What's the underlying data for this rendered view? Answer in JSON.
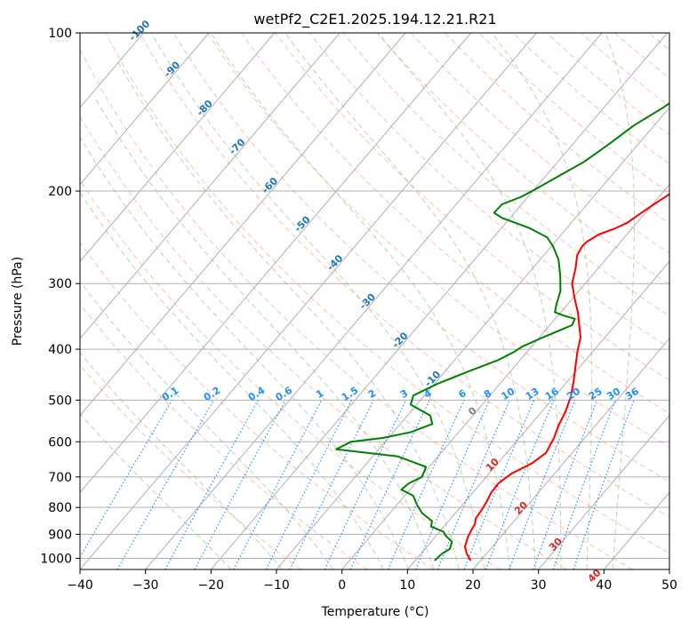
{
  "chart_data": {
    "type": "line",
    "title": "wetPf2_C2E1.2025.194.12.21.R21",
    "xlabel": "Temperature (°C)",
    "ylabel": "Pressure (hPa)",
    "xlim": [
      -40,
      50
    ],
    "ylim": [
      1050,
      100
    ],
    "y_scale": "log",
    "grid": true,
    "x_ticks": [
      -40,
      -30,
      -20,
      -10,
      0,
      10,
      20,
      30,
      40,
      50
    ],
    "y_ticks": [
      100,
      200,
      300,
      400,
      500,
      600,
      700,
      800,
      900,
      1000
    ],
    "series": [
      {
        "color": "#ff0000",
        "points": [
          [
            18.5,
            1010
          ],
          [
            17.0,
            980
          ],
          [
            15.8,
            950
          ],
          [
            15.0,
            910
          ],
          [
            14.6,
            880
          ],
          [
            14.4,
            860
          ],
          [
            13.8,
            840
          ],
          [
            13.6,
            810
          ],
          [
            13.3,
            780
          ],
          [
            12.8,
            750
          ],
          [
            12.7,
            720
          ],
          [
            13.4,
            690
          ],
          [
            15.2,
            660
          ],
          [
            16.0,
            630
          ],
          [
            15.3,
            590
          ],
          [
            14.4,
            560
          ],
          [
            13.6,
            525
          ],
          [
            12.4,
            490
          ],
          [
            10.9,
            460
          ],
          [
            9.2,
            430
          ],
          [
            7.7,
            405
          ],
          [
            6.3,
            380
          ],
          [
            4.5,
            360
          ],
          [
            2.6,
            340
          ],
          [
            0.3,
            320
          ],
          [
            -2.0,
            300
          ],
          [
            -3.5,
            280
          ],
          [
            -4.9,
            265
          ],
          [
            -5.3,
            255
          ],
          [
            -5.2,
            250
          ],
          [
            -4.3,
            242
          ],
          [
            -2.7,
            236
          ],
          [
            -1.5,
            230
          ],
          [
            -0.8,
            222
          ],
          [
            0.2,
            212
          ],
          [
            1.8,
            198
          ],
          [
            3.8,
            182
          ],
          [
            6.0,
            165
          ],
          [
            7.2,
            152
          ],
          [
            7.7,
            140
          ],
          [
            8.3,
            130
          ],
          [
            9.5,
            122
          ],
          [
            11.1,
            115
          ],
          [
            12.6,
            108
          ],
          [
            13.8,
            100
          ]
        ]
      },
      {
        "color": "#008000",
        "points": [
          [
            13.0,
            1010
          ],
          [
            13.2,
            980
          ],
          [
            13.8,
            960
          ],
          [
            13.2,
            930
          ],
          [
            11.4,
            905
          ],
          [
            10.6,
            890
          ],
          [
            8.0,
            870
          ],
          [
            7.5,
            850
          ],
          [
            4.9,
            820
          ],
          [
            3.0,
            790
          ],
          [
            1.3,
            760
          ],
          [
            -1.3,
            740
          ],
          [
            -1.0,
            720
          ],
          [
            0.2,
            700
          ],
          [
            -0.5,
            670
          ],
          [
            -6.1,
            640
          ],
          [
            -16.5,
            620
          ],
          [
            -15.2,
            600
          ],
          [
            -10.8,
            590
          ],
          [
            -7.3,
            575
          ],
          [
            -5.1,
            555
          ],
          [
            -6.5,
            535
          ],
          [
            -10.9,
            510
          ],
          [
            -11.7,
            490
          ],
          [
            -9.5,
            465
          ],
          [
            -6.3,
            440
          ],
          [
            -3.4,
            420
          ],
          [
            -2.0,
            405
          ],
          [
            -1.4,
            395
          ],
          [
            0.5,
            380
          ],
          [
            3.4,
            360
          ],
          [
            3.0,
            350
          ],
          [
            0.8,
            345
          ],
          [
            -0.9,
            340
          ],
          [
            -1.6,
            330
          ],
          [
            -2.8,
            310
          ],
          [
            -4.8,
            290
          ],
          [
            -7.2,
            270
          ],
          [
            -9.7,
            255
          ],
          [
            -11.8,
            245
          ],
          [
            -15.8,
            235
          ],
          [
            -21.2,
            225
          ],
          [
            -23.1,
            220
          ],
          [
            -23.0,
            212
          ],
          [
            -21.0,
            205
          ],
          [
            -19.8,
            198
          ],
          [
            -17.6,
            185
          ],
          [
            -16.0,
            176
          ],
          [
            -15.3,
            170
          ],
          [
            -14.4,
            162
          ],
          [
            -13.1,
            150
          ],
          [
            -10.8,
            138
          ],
          [
            -9.8,
            130
          ],
          [
            -7.6,
            120
          ],
          [
            -5.3,
            112
          ],
          [
            -3.0,
            105
          ],
          [
            -1.3,
            100
          ]
        ]
      }
    ],
    "dry_adiabats_theta_K": [
      -10,
      0,
      10,
      20,
      30,
      40,
      50,
      60,
      70,
      80,
      90,
      100,
      110,
      120,
      130,
      140,
      150,
      160,
      170,
      180,
      190,
      200,
      210
    ],
    "moist_adiabats_C": [
      -20,
      -12,
      -4,
      4,
      8,
      12,
      16,
      20,
      24,
      28,
      32,
      36,
      40
    ],
    "mixing_ratio_labels": [
      "0.1",
      "0.2",
      "0.4",
      "0.6",
      "1",
      "1.5",
      "2",
      "3",
      "4",
      "6",
      "8",
      "10",
      "13",
      "16",
      "20",
      "25",
      "30",
      "36"
    ],
    "mixing_ratio_values": [
      0.1,
      0.2,
      0.4,
      0.6,
      1,
      1.5,
      2,
      3,
      4,
      6,
      8,
      10,
      13,
      16,
      20,
      25,
      30,
      36
    ],
    "isotherm_labels": [
      {
        "t": -100,
        "text": "-100"
      },
      {
        "t": -90,
        "text": "-90"
      },
      {
        "t": -80,
        "text": "-80"
      },
      {
        "t": -70,
        "text": "-70"
      },
      {
        "t": -60,
        "text": "-60"
      },
      {
        "t": -50,
        "text": "-50"
      },
      {
        "t": -40,
        "text": "-40"
      },
      {
        "t": -30,
        "text": "-30"
      },
      {
        "t": -20,
        "text": "-20"
      },
      {
        "t": -10,
        "text": "-10"
      },
      {
        "t": 0,
        "text": "0"
      },
      {
        "t": 10,
        "text": "10"
      },
      {
        "t": 20,
        "text": "20"
      },
      {
        "t": 30,
        "text": "30"
      },
      {
        "t": 40,
        "text": "40"
      }
    ],
    "colors": {
      "isotherm_neg": "#1f77b4",
      "isotherm_zero": "#808080",
      "isotherm_pos": "#d62728",
      "mixing_ratio": "#1e90ff",
      "dry_adiabat": "#ff8c69",
      "moist_adiabat": "#7fbf7f",
      "grid": "#b0b0b0"
    }
  }
}
